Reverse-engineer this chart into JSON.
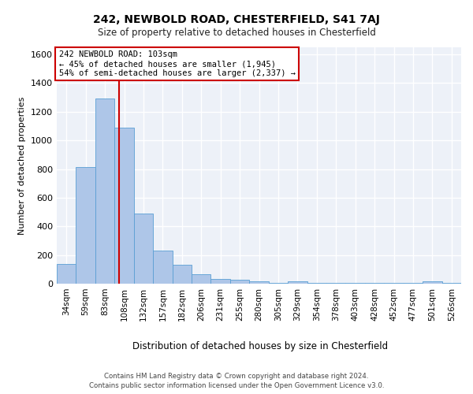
{
  "title_line1": "242, NEWBOLD ROAD, CHESTERFIELD, S41 7AJ",
  "title_line2": "Size of property relative to detached houses in Chesterfield",
  "xlabel": "Distribution of detached houses by size in Chesterfield",
  "ylabel": "Number of detached properties",
  "footer_line1": "Contains HM Land Registry data © Crown copyright and database right 2024.",
  "footer_line2": "Contains public sector information licensed under the Open Government Licence v3.0.",
  "categories": [
    "34sqm",
    "59sqm",
    "83sqm",
    "108sqm",
    "132sqm",
    "157sqm",
    "182sqm",
    "206sqm",
    "231sqm",
    "255sqm",
    "280sqm",
    "305sqm",
    "329sqm",
    "354sqm",
    "378sqm",
    "403sqm",
    "428sqm",
    "452sqm",
    "477sqm",
    "501sqm",
    "526sqm"
  ],
  "values": [
    140,
    815,
    1295,
    1090,
    490,
    230,
    130,
    65,
    35,
    25,
    15,
    5,
    15,
    5,
    5,
    5,
    5,
    5,
    5,
    15,
    5
  ],
  "bar_color": "#aec6e8",
  "bar_edge_color": "#5a9fd4",
  "red_line_x": 2.75,
  "annotation_line1": "242 NEWBOLD ROAD: 103sqm",
  "annotation_line2": "← 45% of detached houses are smaller (1,945)",
  "annotation_line3": "54% of semi-detached houses are larger (2,337) →",
  "annotation_box_facecolor": "#ffffff",
  "annotation_box_edgecolor": "#cc0000",
  "ylim": [
    0,
    1650
  ],
  "yticks": [
    0,
    200,
    400,
    600,
    800,
    1000,
    1200,
    1400,
    1600
  ],
  "background_color": "#edf1f8",
  "grid_color": "#ffffff"
}
